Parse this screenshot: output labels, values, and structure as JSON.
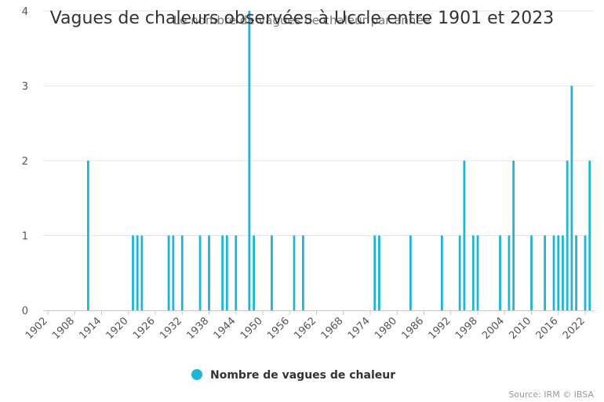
{
  "chart_data": {
    "type": "bar",
    "title": "Vagues de chaleurs observées à Uccle entre 1901 et 2023",
    "subtitle": "Le nombre de vagues de chaleur par année",
    "xlabel": "",
    "ylabel": "",
    "x_range": [
      1901,
      2023
    ],
    "x_ticks": [
      "1902",
      "1908",
      "1914",
      "1920",
      "1926",
      "1932",
      "1938",
      "1944",
      "1950",
      "1956",
      "1962",
      "1968",
      "1974",
      "1980",
      "1986",
      "1992",
      "1998",
      "2004",
      "2010",
      "2016",
      "2022"
    ],
    "y_ticks": [
      "0",
      "1",
      "2",
      "3",
      "4"
    ],
    "ylim": [
      0,
      4
    ],
    "grid": true,
    "legend_position": "bottom-center",
    "series": [
      {
        "name": "Nombre de vagues de chaleur",
        "color": "#1fb5d5",
        "points": [
          {
            "x": 1911,
            "y": 2
          },
          {
            "x": 1921,
            "y": 1
          },
          {
            "x": 1922,
            "y": 1
          },
          {
            "x": 1923,
            "y": 1
          },
          {
            "x": 1929,
            "y": 1
          },
          {
            "x": 1930,
            "y": 1
          },
          {
            "x": 1932,
            "y": 1
          },
          {
            "x": 1936,
            "y": 1
          },
          {
            "x": 1938,
            "y": 1
          },
          {
            "x": 1941,
            "y": 1
          },
          {
            "x": 1942,
            "y": 1
          },
          {
            "x": 1944,
            "y": 1
          },
          {
            "x": 1947,
            "y": 4
          },
          {
            "x": 1948,
            "y": 1
          },
          {
            "x": 1952,
            "y": 1
          },
          {
            "x": 1957,
            "y": 1
          },
          {
            "x": 1959,
            "y": 1
          },
          {
            "x": 1975,
            "y": 1
          },
          {
            "x": 1976,
            "y": 1
          },
          {
            "x": 1983,
            "y": 1
          },
          {
            "x": 1990,
            "y": 1
          },
          {
            "x": 1994,
            "y": 1
          },
          {
            "x": 1995,
            "y": 2
          },
          {
            "x": 1997,
            "y": 1
          },
          {
            "x": 1998,
            "y": 1
          },
          {
            "x": 2003,
            "y": 1
          },
          {
            "x": 2005,
            "y": 1
          },
          {
            "x": 2006,
            "y": 2
          },
          {
            "x": 2010,
            "y": 1
          },
          {
            "x": 2013,
            "y": 1
          },
          {
            "x": 2015,
            "y": 1
          },
          {
            "x": 2016,
            "y": 1
          },
          {
            "x": 2017,
            "y": 1
          },
          {
            "x": 2018,
            "y": 2
          },
          {
            "x": 2019,
            "y": 3
          },
          {
            "x": 2020,
            "y": 1
          },
          {
            "x": 2022,
            "y": 1
          },
          {
            "x": 2023,
            "y": 2
          }
        ]
      }
    ]
  },
  "source": "Source: IRM © IBSA"
}
